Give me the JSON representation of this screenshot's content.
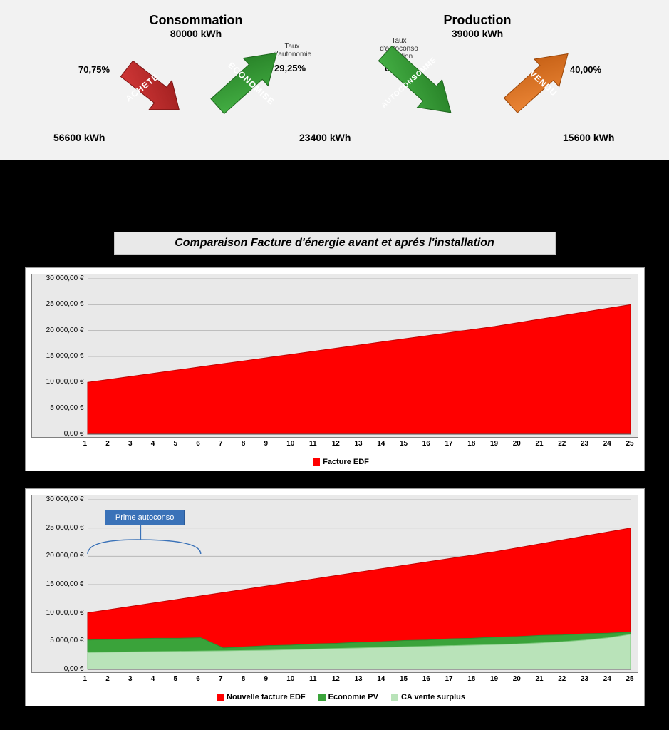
{
  "top": {
    "consommation": {
      "title": "Consommation",
      "value": "80000 kWh",
      "x": 235
    },
    "production": {
      "title": "Production",
      "value": "39000 kWh",
      "x": 625
    },
    "achete": {
      "pct": "70,75%",
      "label": "ACHETE",
      "color": "#b42323",
      "end_val": "56600 kWh"
    },
    "economise": {
      "pct": "29,25%",
      "label": "ECONOMISE",
      "color": "#2e8b2e",
      "end_val": "23400 kWh",
      "caption": "Taux d'autonomie"
    },
    "autoconso": {
      "pct": "60%",
      "label": "AUTOCONSOMME",
      "color": "#2e8b2e",
      "caption": "Taux d'autoconso mmation"
    },
    "vendu": {
      "pct": "40,00%",
      "label": "VENDU",
      "color": "#d76a1a",
      "end_val": "15600 kWh"
    }
  },
  "charts_title": "Comparaison  Facture d'énergie  avant et aprés l'installation",
  "chart_common": {
    "plot_bg": "#e9e9e9",
    "grid_color": "#b8b8b8",
    "ylim": [
      0,
      30000
    ],
    "ytick_step": 5000,
    "ytick_labels": [
      "0,00 €",
      "5 000,00 €",
      "10 000,00 €",
      "15 000,00 €",
      "20 000,00 €",
      "25 000,00 €",
      "30 000,00 €"
    ],
    "x_categories": [
      "1",
      "2",
      "3",
      "4",
      "5",
      "6",
      "7",
      "8",
      "9",
      "10",
      "11",
      "12",
      "13",
      "14",
      "15",
      "16",
      "17",
      "18",
      "19",
      "20",
      "21",
      "22",
      "23",
      "24",
      "25"
    ]
  },
  "chart1": {
    "title": null,
    "series": [
      {
        "name": "Facture EDF",
        "color_fill": "#ff0000",
        "color_line": "#c00000",
        "values": [
          10000,
          10600,
          11200,
          11800,
          12400,
          13000,
          13600,
          14200,
          14800,
          15400,
          16000,
          16600,
          17200,
          17800,
          18400,
          19000,
          19600,
          20200,
          20800,
          21500,
          22200,
          22900,
          23600,
          24300,
          25000
        ]
      }
    ],
    "legend": [
      {
        "label": "Facture EDF",
        "color": "#ff0000"
      }
    ]
  },
  "chart2": {
    "prime_label": "Prime autoconso",
    "prime_span_years": [
      1,
      6
    ],
    "series": [
      {
        "name": "Nouvelle facture EDF",
        "color_fill": "#ff0000",
        "color_line": "#c00000",
        "values": [
          10000,
          10600,
          11200,
          11800,
          12400,
          13000,
          13600,
          14200,
          14800,
          15400,
          16000,
          16600,
          17200,
          17800,
          18400,
          19000,
          19600,
          20200,
          20800,
          21500,
          22200,
          22900,
          23600,
          24300,
          25000
        ]
      },
      {
        "name": "Economie PV",
        "color_fill": "#3aa33a",
        "color_line": "#2e8b2e",
        "values": [
          5200,
          5300,
          5400,
          5500,
          5500,
          5600,
          3800,
          4000,
          4200,
          4300,
          4500,
          4600,
          4800,
          4900,
          5100,
          5200,
          5400,
          5500,
          5700,
          5800,
          6000,
          6100,
          6300,
          6400,
          6600
        ]
      },
      {
        "name": "CA vente surplus",
        "color_fill": "#b9e3b9",
        "color_line": "#7fc97f",
        "values": [
          3000,
          3050,
          3100,
          3150,
          3200,
          3250,
          3300,
          3350,
          3400,
          3500,
          3600,
          3700,
          3800,
          3900,
          4000,
          4100,
          4200,
          4300,
          4400,
          4500,
          4700,
          4900,
          5200,
          5600,
          6200
        ]
      }
    ],
    "legend": [
      {
        "label": "Nouvelle facture EDF",
        "color": "#ff0000"
      },
      {
        "label": "Economie PV",
        "color": "#3aa33a"
      },
      {
        "label": "CA vente surplus",
        "color": "#b9e3b9"
      }
    ]
  }
}
